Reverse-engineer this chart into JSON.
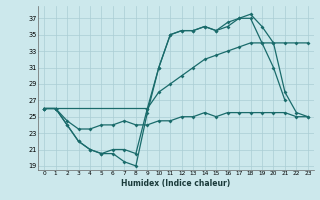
{
  "xlabel": "Humidex (Indice chaleur)",
  "background_color": "#cce8ec",
  "grid_color": "#aacdd4",
  "line_color": "#1a6b6b",
  "xlim": [
    -0.5,
    23.5
  ],
  "ylim": [
    18.5,
    38.5
  ],
  "xticks": [
    0,
    1,
    2,
    3,
    4,
    5,
    6,
    7,
    8,
    9,
    10,
    11,
    12,
    13,
    14,
    15,
    16,
    17,
    18,
    19,
    20,
    21,
    22,
    23
  ],
  "yticks": [
    19,
    21,
    23,
    25,
    27,
    29,
    31,
    33,
    35,
    37
  ],
  "line1_x": [
    0,
    1,
    2,
    3,
    4,
    5,
    6,
    7,
    8,
    9,
    10,
    11,
    12,
    13,
    14,
    15,
    16,
    17,
    18,
    19,
    20,
    21
  ],
  "line1_y": [
    26,
    26,
    24,
    22,
    21,
    20.5,
    20.5,
    19.5,
    19,
    25.5,
    31,
    35,
    35.5,
    35.5,
    36,
    35.5,
    36,
    37,
    37,
    34,
    31,
    27
  ],
  "line2_x": [
    0,
    1,
    2,
    3,
    4,
    5,
    6,
    7,
    8,
    9,
    10,
    11,
    12,
    13,
    14,
    15,
    16,
    17,
    18,
    19,
    20,
    21,
    22,
    23
  ],
  "line2_y": [
    26,
    26,
    24,
    22,
    21,
    20.5,
    21,
    21,
    20.5,
    26,
    31,
    35,
    35.5,
    35.5,
    36,
    35.5,
    36.5,
    37,
    37.5,
    36,
    34,
    28,
    25.5,
    25
  ],
  "line3_x": [
    0,
    1,
    9,
    10,
    11,
    12,
    13,
    14,
    15,
    16,
    17,
    18,
    19,
    20,
    21,
    22,
    23
  ],
  "line3_y": [
    26,
    26,
    26,
    28,
    29,
    30,
    31,
    32,
    32.5,
    33,
    33.5,
    34,
    34,
    34,
    34,
    34,
    34
  ],
  "line4_x": [
    0,
    1,
    2,
    3,
    4,
    5,
    6,
    7,
    8,
    9,
    10,
    11,
    12,
    13,
    14,
    15,
    16,
    17,
    18,
    19,
    20,
    21,
    22,
    23
  ],
  "line4_y": [
    26,
    26,
    24.5,
    23.5,
    23.5,
    24,
    24,
    24.5,
    24,
    24,
    24.5,
    24.5,
    25,
    25,
    25.5,
    25,
    25.5,
    25.5,
    25.5,
    25.5,
    25.5,
    25.5,
    25,
    25
  ]
}
